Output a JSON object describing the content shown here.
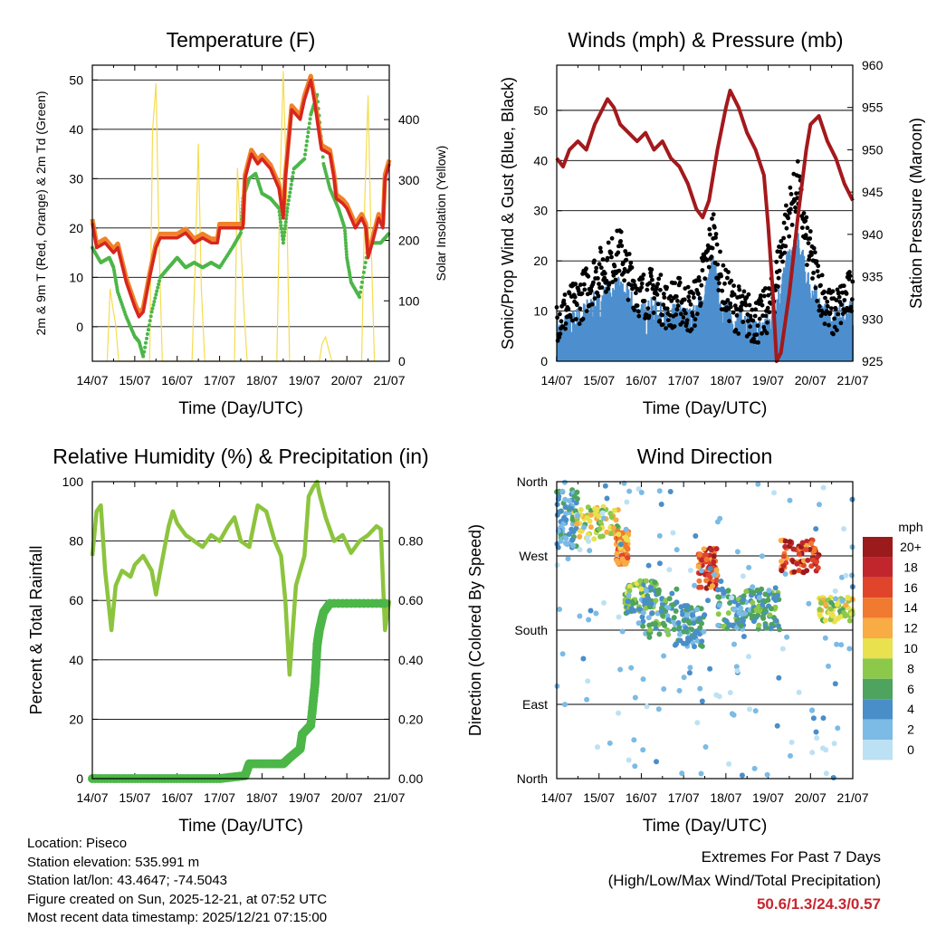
{
  "chart_data": [
    {
      "type": "line",
      "title": "Temperature (F)",
      "xlabel": "Time (Day/UTC)",
      "ylabel": "2m & 9m T (Red, Orange) & 2m Td (Green)",
      "ylabel_right": "Solar Insolation (Yellow)",
      "x_ticks": [
        "14/07",
        "15/07",
        "16/07",
        "17/07",
        "18/07",
        "19/07",
        "20/07",
        "21/07"
      ],
      "xlim": [
        0,
        7
      ],
      "ylim": [
        -7,
        53
      ],
      "y_ticks": [
        "0",
        "10",
        "20",
        "30",
        "40",
        "50"
      ],
      "y2lim": [
        0,
        490
      ],
      "y2_ticks": [
        "0",
        "100",
        "200",
        "300",
        "400"
      ],
      "colors": {
        "t2m": "#d7261e",
        "t9m": "#f0822a",
        "td": "#4cb648",
        "solar": "#f5dc50"
      },
      "series": [
        {
          "name": "2m T",
          "x": [
            0,
            0.1,
            0.3,
            0.5,
            0.6,
            0.8,
            1.0,
            1.1,
            1.2,
            1.35,
            1.5,
            1.6,
            1.8,
            2.0,
            2.2,
            2.4,
            2.6,
            2.8,
            2.95,
            3.0,
            3.1,
            3.3,
            3.55,
            3.6,
            3.75,
            3.9,
            4.0,
            4.2,
            4.4,
            4.5,
            4.55,
            4.7,
            4.9,
            5.0,
            5.15,
            5.25,
            5.4,
            5.6,
            5.7,
            5.75,
            5.9,
            6.0,
            6.2,
            6.35,
            6.45,
            6.5,
            6.6,
            6.75,
            6.85,
            6.9,
            7.0
          ],
          "values": [
            21,
            16,
            17,
            15,
            16,
            9,
            4,
            2,
            3,
            10,
            16,
            18,
            18,
            18,
            19,
            17,
            18,
            17,
            17,
            20,
            20,
            20,
            20,
            30,
            35,
            33,
            34,
            32,
            28,
            22,
            30,
            44,
            42,
            46,
            50,
            45,
            36,
            35,
            30,
            26,
            25,
            24,
            20,
            22,
            20,
            14,
            17,
            22,
            20,
            30,
            33
          ]
        },
        {
          "name": "2m Td",
          "x": [
            0,
            0.2,
            0.4,
            0.5,
            0.6,
            0.8,
            1.0,
            1.1,
            1.2,
            1.4,
            1.6,
            1.8,
            2.0,
            2.2,
            2.4,
            2.6,
            2.8,
            3.0,
            3.3,
            3.5,
            3.55,
            3.7,
            3.85,
            4.0,
            4.2,
            4.4,
            4.5,
            4.6,
            4.75,
            5.0,
            5.15,
            5.3,
            5.45,
            5.6,
            5.8,
            5.95,
            6.0,
            6.1,
            6.3,
            6.5,
            6.6,
            6.8,
            7.0
          ],
          "values": [
            16,
            13,
            14,
            12,
            7,
            2,
            -2,
            -3,
            -6,
            3,
            10,
            12,
            14,
            12,
            13,
            12,
            13,
            12,
            16,
            19,
            26,
            30,
            31,
            27,
            26,
            24,
            17,
            24,
            32,
            34,
            43,
            47,
            33,
            28,
            24,
            20,
            14,
            9,
            6,
            16,
            17,
            17,
            19
          ]
        },
        {
          "name": "Solar",
          "axis": "right",
          "x": [
            0.35,
            0.42,
            0.48,
            0.55,
            0.62,
            1.35,
            1.42,
            1.5,
            1.57,
            1.65,
            2.35,
            2.42,
            2.5,
            2.57,
            2.65,
            3.35,
            3.42,
            3.5,
            3.57,
            3.65,
            4.35,
            4.42,
            4.5,
            4.57,
            4.65,
            5.35,
            5.42,
            5.5,
            5.57,
            5.65,
            6.35,
            6.42,
            6.5,
            6.57,
            6.65
          ],
          "values": [
            0,
            120,
            90,
            60,
            0,
            0,
            380,
            460,
            200,
            0,
            0,
            150,
            360,
            120,
            0,
            0,
            320,
            200,
            90,
            0,
            0,
            280,
            480,
            310,
            0,
            0,
            30,
            40,
            20,
            0,
            0,
            260,
            440,
            200,
            0
          ]
        }
      ]
    },
    {
      "type": "line",
      "title": "Winds (mph) & Pressure (mb)",
      "xlabel": "Time (Day/UTC)",
      "ylabel": "Sonic/Prop Wind & Gust (Blue, Black)",
      "ylabel_right": "Station Pressure (Maroon)",
      "x_ticks": [
        "14/07",
        "15/07",
        "16/07",
        "17/07",
        "18/07",
        "19/07",
        "20/07",
        "21/07"
      ],
      "xlim": [
        0,
        7
      ],
      "ylim": [
        0,
        59
      ],
      "y_ticks": [
        "0",
        "10",
        "20",
        "30",
        "40",
        "50"
      ],
      "y2lim": [
        925,
        960
      ],
      "y2_ticks": [
        "925",
        "930",
        "935",
        "940",
        "945",
        "950",
        "955",
        "960"
      ],
      "colors": {
        "wind": "#4d8fce",
        "gust": "#000000",
        "pressure": "#a3191c"
      },
      "series": [
        {
          "name": "Wind",
          "x": [
            0,
            0.3,
            0.6,
            0.9,
            1.2,
            1.5,
            1.7,
            2.0,
            2.3,
            2.6,
            2.9,
            3.2,
            3.5,
            3.7,
            3.9,
            4.2,
            4.5,
            4.8,
            5.1,
            5.3,
            5.5,
            5.7,
            5.9,
            6.2,
            6.5,
            6.8,
            7.0
          ],
          "values": [
            5,
            6,
            8,
            10,
            12,
            13,
            11,
            8,
            9,
            7,
            8,
            7,
            12,
            18,
            10,
            7,
            6,
            5,
            8,
            14,
            19,
            22,
            16,
            10,
            6,
            8,
            9
          ]
        },
        {
          "name": "Gust",
          "x": [
            0,
            0.3,
            0.6,
            0.9,
            1.2,
            1.5,
            1.7,
            2.0,
            2.3,
            2.6,
            2.9,
            3.2,
            3.5,
            3.7,
            3.9,
            4.2,
            4.5,
            4.8,
            5.1,
            5.3,
            5.5,
            5.7,
            5.9,
            6.2,
            6.5,
            6.8,
            7.0
          ],
          "values": [
            9,
            10,
            13,
            17,
            19,
            22,
            17,
            13,
            14,
            11,
            12,
            10,
            18,
            26,
            15,
            11,
            9,
            8,
            12,
            22,
            30,
            35,
            24,
            15,
            9,
            12,
            14
          ]
        },
        {
          "name": "Pressure",
          "axis": "right",
          "x": [
            0,
            0.15,
            0.3,
            0.5,
            0.7,
            0.9,
            1.0,
            1.2,
            1.35,
            1.5,
            1.7,
            1.9,
            2.1,
            2.3,
            2.5,
            2.7,
            2.9,
            3.1,
            3.3,
            3.45,
            3.6,
            3.8,
            4.0,
            4.1,
            4.3,
            4.5,
            4.7,
            4.9,
            5.0,
            5.1,
            5.2,
            5.3,
            5.5,
            5.7,
            5.9,
            6.0,
            6.2,
            6.4,
            6.6,
            6.8,
            7.0
          ],
          "values": [
            949,
            948,
            950,
            951,
            950,
            953,
            954,
            956,
            955,
            953,
            952,
            951,
            952,
            950,
            951,
            949,
            948,
            946,
            943,
            942,
            944,
            950,
            955,
            957,
            955,
            952,
            950,
            947,
            941,
            934,
            925,
            926,
            933,
            942,
            950,
            953,
            954,
            951,
            949,
            946,
            944
          ]
        }
      ]
    },
    {
      "type": "line",
      "title": "Relative Humidity (%) & Precipitation (in)",
      "xlabel": "Time (Day/UTC)",
      "ylabel": "Percent & Total Rainfall",
      "x_ticks": [
        "14/07",
        "15/07",
        "16/07",
        "17/07",
        "18/07",
        "19/07",
        "20/07",
        "21/07"
      ],
      "xlim": [
        0,
        7
      ],
      "ylim": [
        0,
        100
      ],
      "y_ticks": [
        "0",
        "20",
        "40",
        "60",
        "80",
        "100"
      ],
      "y2lim": [
        0,
        1.0
      ],
      "y2_ticks": [
        "0.00",
        "0.20",
        "0.40",
        "0.60",
        "0.80"
      ],
      "colors": {
        "rh": "#8cc43e",
        "precip": "#4cb648"
      },
      "series": [
        {
          "name": "RH",
          "x": [
            0,
            0.1,
            0.2,
            0.3,
            0.45,
            0.55,
            0.7,
            0.9,
            1.0,
            1.2,
            1.4,
            1.5,
            1.6,
            1.8,
            1.9,
            2.0,
            2.2,
            2.4,
            2.6,
            2.8,
            3.0,
            3.2,
            3.35,
            3.5,
            3.7,
            3.9,
            4.1,
            4.3,
            4.45,
            4.55,
            4.65,
            4.8,
            5.0,
            5.1,
            5.2,
            5.3,
            5.35,
            5.5,
            5.7,
            5.9,
            6.1,
            6.3,
            6.5,
            6.7,
            6.8,
            6.9,
            7.0
          ],
          "values": [
            75,
            90,
            92,
            70,
            50,
            65,
            70,
            68,
            72,
            75,
            70,
            62,
            70,
            85,
            90,
            86,
            82,
            80,
            78,
            82,
            80,
            85,
            88,
            80,
            78,
            92,
            90,
            80,
            75,
            60,
            35,
            65,
            75,
            95,
            98,
            100,
            96,
            88,
            80,
            82,
            76,
            80,
            82,
            85,
            84,
            50,
            60
          ]
        },
        {
          "name": "Precipitation",
          "axis": "right",
          "x": [
            0,
            1,
            2,
            3,
            3.6,
            3.7,
            4.5,
            4.65,
            4.9,
            4.95,
            5.15,
            5.25,
            5.3,
            5.35,
            5.45,
            5.6,
            7.0
          ],
          "values": [
            0,
            0,
            0,
            0,
            0.01,
            0.05,
            0.05,
            0.07,
            0.1,
            0.15,
            0.18,
            0.32,
            0.45,
            0.5,
            0.56,
            0.59,
            0.59
          ]
        }
      ]
    },
    {
      "type": "scatter",
      "title": "Wind Direction",
      "xlabel": "Time (Day/UTC)",
      "ylabel": "Direction (Colored By Speed)",
      "x_ticks": [
        "14/07",
        "15/07",
        "16/07",
        "17/07",
        "18/07",
        "19/07",
        "20/07",
        "21/07"
      ],
      "xlim": [
        0,
        7
      ],
      "ylim": [
        0,
        360
      ],
      "y_ticks": [
        "North",
        "East",
        "South",
        "West",
        "North"
      ],
      "legend_title": "mph",
      "legend_labels": [
        "20+",
        "18",
        "16",
        "14",
        "12",
        "10",
        "8",
        "6",
        "4",
        "2",
        "0"
      ],
      "legend_colors": [
        "#9b1a1c",
        "#c0262c",
        "#e0452b",
        "#f07a30",
        "#f9ab44",
        "#e9e14d",
        "#8cc84a",
        "#4ea35e",
        "#4a8ec9",
        "#7bbbe6",
        "#bde1f4"
      ],
      "clusters": [
        {
          "x": [
            0,
            0.5
          ],
          "dir": [
            280,
            350
          ],
          "speed": [
            2,
            6
          ]
        },
        {
          "x": [
            0.4,
            1.5
          ],
          "dir": [
            290,
            330
          ],
          "speed": [
            6,
            12
          ]
        },
        {
          "x": [
            1.4,
            1.7
          ],
          "dir": [
            260,
            300
          ],
          "speed": [
            10,
            16
          ]
        },
        {
          "x": [
            1.6,
            2.4
          ],
          "dir": [
            200,
            240
          ],
          "speed": [
            3,
            10
          ]
        },
        {
          "x": [
            2.0,
            2.9
          ],
          "dir": [
            170,
            230
          ],
          "speed": [
            2,
            8
          ]
        },
        {
          "x": [
            2.8,
            3.5
          ],
          "dir": [
            160,
            210
          ],
          "speed": [
            2,
            7
          ]
        },
        {
          "x": [
            3.35,
            3.8
          ],
          "dir": [
            230,
            280
          ],
          "speed": [
            12,
            20
          ]
        },
        {
          "x": [
            3.8,
            4.6
          ],
          "dir": [
            180,
            230
          ],
          "speed": [
            2,
            8
          ]
        },
        {
          "x": [
            4.6,
            5.3
          ],
          "dir": [
            180,
            230
          ],
          "speed": [
            3,
            8
          ]
        },
        {
          "x": [
            5.3,
            6.2
          ],
          "dir": [
            250,
            290
          ],
          "speed": [
            12,
            21
          ]
        },
        {
          "x": [
            6.2,
            7.0
          ],
          "dir": [
            190,
            220
          ],
          "speed": [
            6,
            12
          ]
        },
        {
          "x": [
            0,
            7.0
          ],
          "dir": [
            0,
            360
          ],
          "speed": [
            0,
            4
          ]
        }
      ]
    }
  ],
  "footer": {
    "location": "Location: Piseco",
    "elevation": "Station elevation: 535.991 m",
    "latlon": "Station lat/lon: 43.4647; -74.5043",
    "created": "Figure created on Sun, 2025-12-21, at 07:52 UTC",
    "latest": "Most recent data timestamp: 2025/12/21 07:15:00"
  },
  "extremes": {
    "title": "Extremes For Past 7 Days",
    "subtitle": "(High/Low/Max Wind/Total Precipitation)",
    "values": "50.6/1.3/24.3/0.57"
  }
}
